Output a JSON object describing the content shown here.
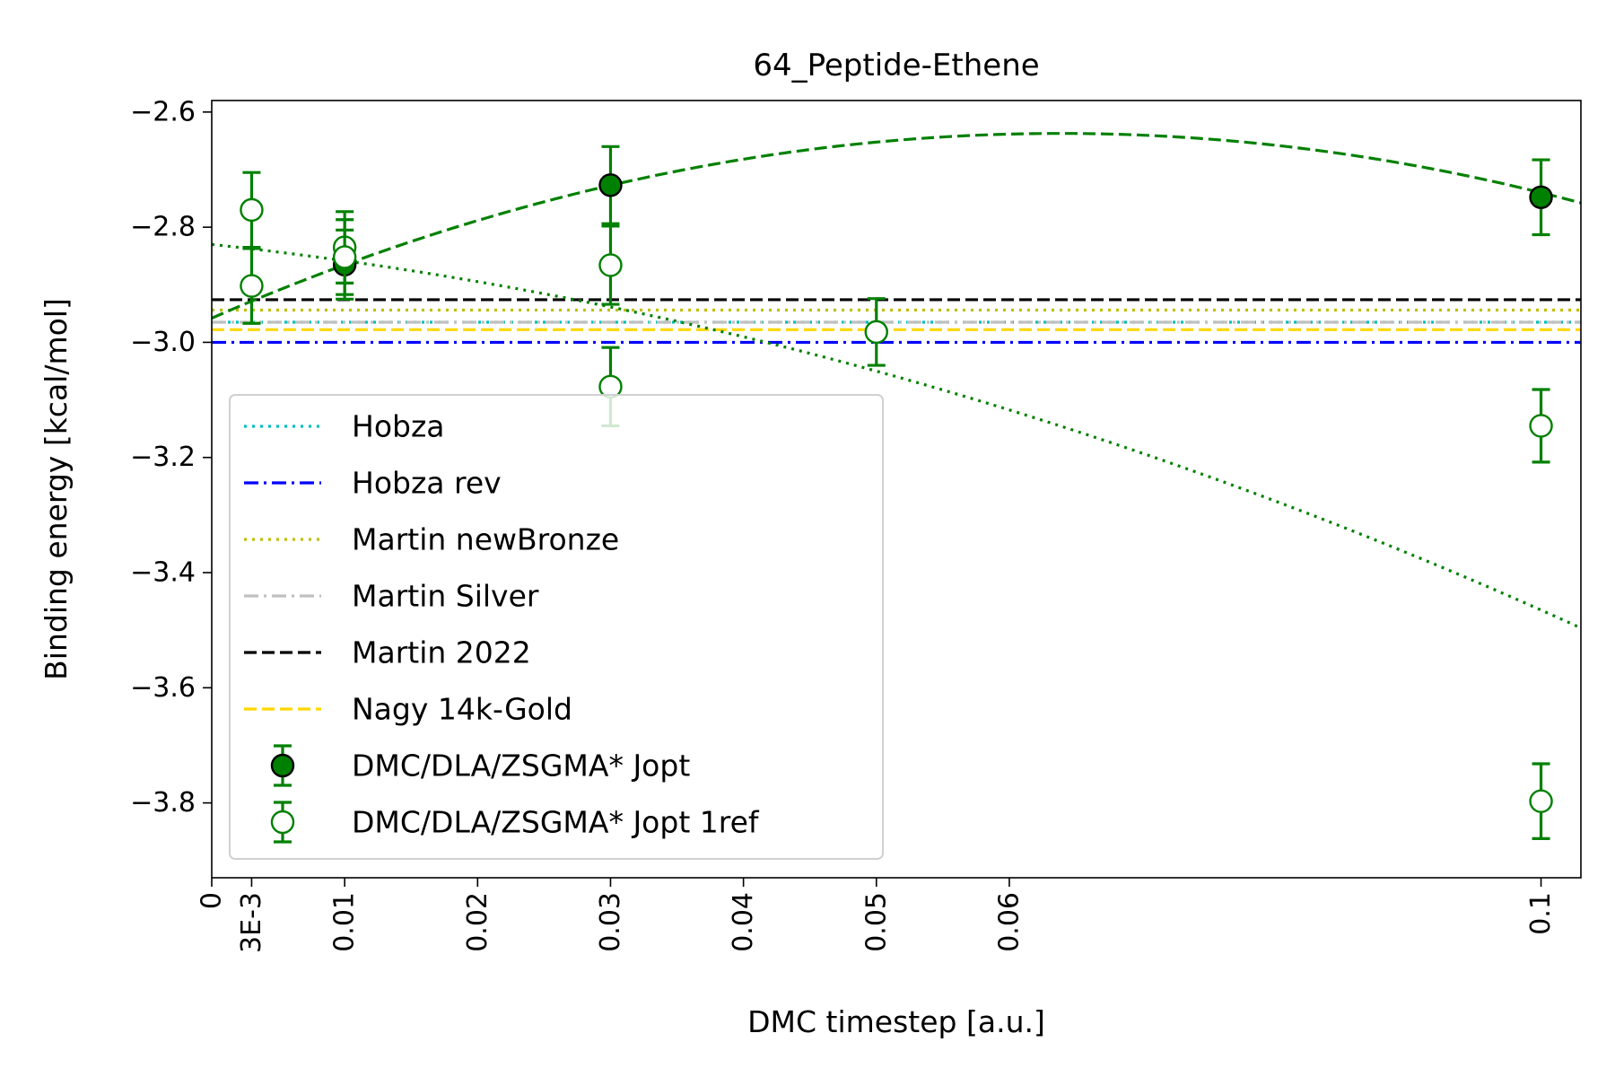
{
  "chart_data": {
    "type": "scatter",
    "title": "64_Peptide-Ethene",
    "xlabel": "DMC timestep [a.u.]",
    "ylabel": "Binding energy [kcal/mol]",
    "xlim": [
      0,
      0.103
    ],
    "ylim": [
      -3.93,
      -2.58
    ],
    "x_ticks": [
      0,
      0.003,
      0.01,
      0.02,
      0.03,
      0.04,
      0.05,
      0.06,
      0.1
    ],
    "x_tick_labels": [
      "0",
      "3E-3",
      "0.01",
      "0.02",
      "0.03",
      "0.04",
      "0.05",
      "0.06",
      "0.1"
    ],
    "y_ticks": [
      -2.6,
      -2.8,
      -3.0,
      -3.2,
      -3.4,
      -3.6,
      -3.8
    ],
    "y_tick_labels": [
      "−2.6",
      "−2.8",
      "−3.0",
      "−3.2",
      "−3.4",
      "−3.6",
      "−3.8"
    ],
    "grid": false,
    "legend_position": "lower-left",
    "reference_lines": [
      {
        "name": "Hobza",
        "y": -2.965,
        "color": "#00bfbf",
        "style": "dotted"
      },
      {
        "name": "Hobza rev",
        "y": -3.0,
        "color": "#0000ff",
        "style": "dashdot"
      },
      {
        "name": "Martin newBronze",
        "y": -2.944,
        "color": "#bfbf00",
        "style": "dotted"
      },
      {
        "name": "Martin Silver",
        "y": -2.965,
        "color": "#c0c0c0",
        "style": "dashdot"
      },
      {
        "name": "Martin 2022",
        "y": -2.926,
        "color": "#000000",
        "style": "dashed"
      },
      {
        "name": "Nagy 14k-Gold",
        "y": -2.978,
        "color": "#ffd700",
        "style": "dashed"
      }
    ],
    "series": [
      {
        "name": "DMC/DLA/ZSGMA* Jopt",
        "marker": "filled-circle",
        "color": "#008000",
        "points": [
          {
            "x": 0.01,
            "y": -2.865,
            "err": 0.06
          },
          {
            "x": 0.03,
            "y": -2.727,
            "err": 0.067
          },
          {
            "x": 0.1,
            "y": -2.748,
            "err": 0.065
          }
        ]
      },
      {
        "name": "DMC/DLA/ZSGMA* Jopt 1ref",
        "marker": "open-circle",
        "color": "#008000",
        "points": [
          {
            "x": 0.003,
            "y": -2.77,
            "err": 0.065
          },
          {
            "x": 0.003,
            "y": -2.902,
            "err": 0.065
          },
          {
            "x": 0.01,
            "y": -2.835,
            "err": 0.062
          },
          {
            "x": 0.01,
            "y": -2.852,
            "err": 0.065
          },
          {
            "x": 0.03,
            "y": -2.866,
            "err": 0.068
          },
          {
            "x": 0.03,
            "y": -3.077,
            "err": 0.068
          },
          {
            "x": 0.05,
            "y": -2.982,
            "err": 0.058
          },
          {
            "x": 0.1,
            "y": -3.145,
            "err": 0.063
          },
          {
            "x": 0.1,
            "y": -3.797,
            "err": 0.065
          }
        ]
      }
    ],
    "fit_curves": [
      {
        "series": "DMC/DLA/ZSGMA* Jopt",
        "style": "dashed",
        "color": "#008000",
        "form": "quadratic",
        "coeffs": [
          -2.958,
          10.05,
          -78.7
        ]
      },
      {
        "series": "DMC/DLA/ZSGMA* Jopt 1ref",
        "style": "dotted",
        "color": "#008000",
        "form": "quadratic",
        "coeffs": [
          -2.83,
          -2.45,
          -39.0
        ]
      }
    ]
  }
}
